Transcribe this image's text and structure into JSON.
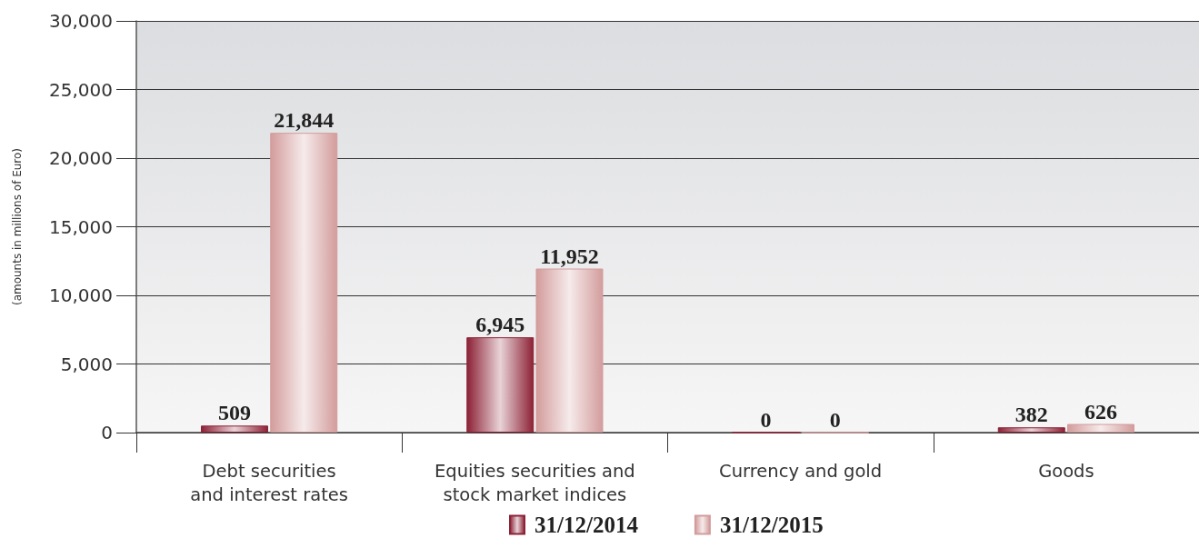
{
  "chart_data": {
    "type": "bar",
    "ylabel": "(amounts in millions of Euro)",
    "categories": [
      "Debt securities\nand interest rates",
      "Equities securities and\nstock market indices",
      "Currency and gold",
      "Goods"
    ],
    "series": [
      {
        "name": "31/12/2014",
        "color": "#8c2236",
        "values": [
          509,
          6945,
          0,
          382
        ],
        "value_labels": [
          "509",
          "6,945",
          "0",
          "382"
        ]
      },
      {
        "name": "31/12/2015",
        "color": "#d39c9c",
        "values": [
          21844,
          11952,
          0,
          626
        ],
        "value_labels": [
          "21,844",
          "11,952",
          "0",
          "626"
        ]
      }
    ],
    "ylim": [
      0,
      30000
    ],
    "yticks": [
      0,
      {
        "value": 5000,
        "label": "5,000"
      },
      {
        "value": 10000,
        "label": "10,000"
      },
      {
        "value": 15000,
        "label": "15,000"
      },
      {
        "value": 20000,
        "label": "20,000"
      },
      {
        "value": 25000,
        "label": "25,000"
      },
      {
        "value": 30000,
        "label": "30,000"
      }
    ],
    "grid": "y",
    "legend": "bottom"
  }
}
